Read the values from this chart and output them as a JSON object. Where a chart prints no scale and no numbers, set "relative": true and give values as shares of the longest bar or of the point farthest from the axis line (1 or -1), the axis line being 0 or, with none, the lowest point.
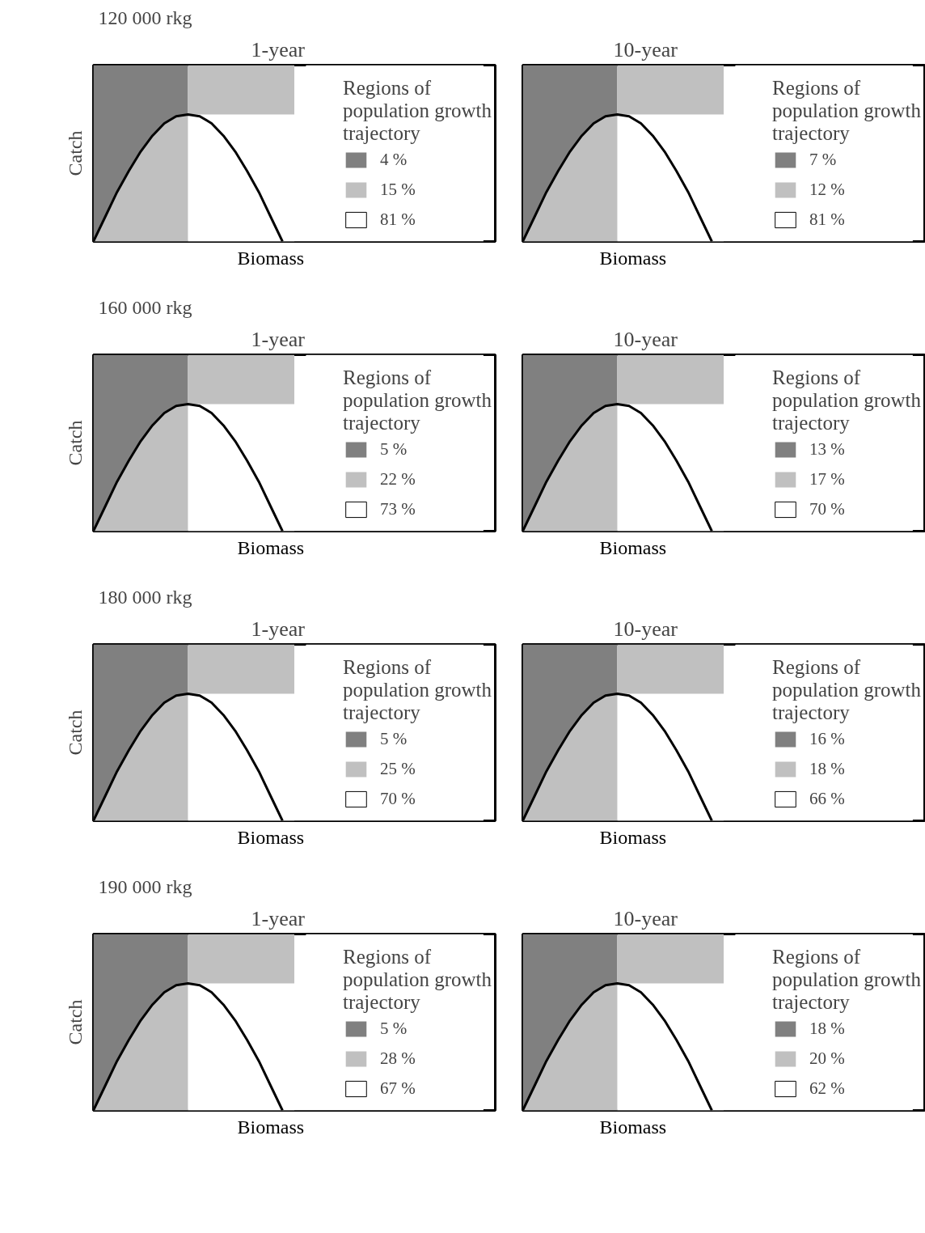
{
  "chart_data": [
    {
      "type": "line",
      "relative": true,
      "annotations": [
        "120 000 rkg"
      ],
      "title": "1-year",
      "xlabel": "Biomass",
      "ylabel": "Catch",
      "legend": "right",
      "legend_title": "Regions of population growth trajectory",
      "categories": [
        null,
        null,
        null,
        null,
        null,
        null,
        null,
        null,
        null,
        null,
        null,
        null,
        null,
        null,
        null,
        null,
        null,
        null,
        null,
        null,
        null,
        null,
        null,
        null,
        null,
        null,
        null,
        null,
        null,
        null,
        null,
        null,
        null,
        null
      ],
      "series": [
        {
          "name": "4 %",
          "type": "area",
          "color": "#808080",
          "values": [
            1,
            1,
            1,
            1,
            1,
            1,
            1,
            1,
            1,
            null,
            null,
            null,
            null,
            null,
            null,
            null,
            null,
            null,
            null,
            null,
            null,
            null,
            null,
            null,
            null,
            null,
            null,
            null,
            null,
            null,
            null,
            null,
            null,
            null
          ]
        },
        {
          "name": "15 %",
          "type": "area",
          "color": "#c0c0c0",
          "values": [
            0,
            0.14,
            0.28,
            0.4,
            0.51,
            0.6,
            0.67,
            0.71,
            0.72,
            null,
            null,
            null,
            null,
            null,
            null,
            null,
            null,
            null,
            null,
            null,
            null,
            null,
            null,
            null,
            null,
            null,
            null,
            null,
            null,
            null,
            null,
            null,
            null,
            null
          ]
        },
        {
          "type": "area",
          "color": "#c0c0c0",
          "values": [
            null,
            null,
            null,
            null,
            null,
            null,
            null,
            null,
            1,
            1,
            1,
            1,
            1,
            1,
            1,
            1,
            1,
            1,
            null,
            null,
            null,
            null,
            null,
            null,
            null,
            null,
            null,
            null,
            null,
            null,
            null,
            null,
            null,
            null
          ]
        },
        {
          "name": "81 %",
          "type": "area",
          "color": "#ffffff",
          "values": [
            null,
            null,
            null,
            null,
            null,
            null,
            null,
            null,
            0.72,
            0.72,
            0.72,
            0.72,
            0.72,
            0.72,
            0.72,
            0.72,
            0.72,
            0.72,
            1,
            1,
            1,
            1,
            1,
            1,
            1,
            1,
            1,
            1,
            1,
            1,
            1,
            1,
            1,
            1
          ]
        },
        {
          "type": "line",
          "color": "#000000",
          "values": [
            0,
            0.14,
            0.28,
            0.4,
            0.51,
            0.6,
            0.67,
            0.71,
            0.72,
            0.71,
            0.67,
            0.6,
            0.51,
            0.4,
            0.28,
            0.14,
            0,
            null,
            null,
            null,
            null,
            null,
            null,
            null,
            null,
            null,
            null,
            null,
            null,
            null,
            null,
            null,
            null,
            null
          ]
        }
      ]
    },
    {
      "type": "line",
      "relative": true,
      "title": "10-year",
      "xlabel": "Biomass",
      "legend": "right",
      "legend_title": "Regions of population growth trajectory",
      "categories": [
        null,
        null,
        null,
        null,
        null,
        null,
        null,
        null,
        null,
        null,
        null,
        null,
        null,
        null,
        null,
        null,
        null,
        null,
        null,
        null,
        null,
        null,
        null,
        null,
        null,
        null,
        null,
        null,
        null,
        null,
        null,
        null,
        null,
        null
      ],
      "series": [
        {
          "name": "7 %",
          "type": "area",
          "color": "#808080",
          "values": [
            1,
            1,
            1,
            1,
            1,
            1,
            1,
            1,
            1,
            null,
            null,
            null,
            null,
            null,
            null,
            null,
            null,
            null,
            null,
            null,
            null,
            null,
            null,
            null,
            null,
            null,
            null,
            null,
            null,
            null,
            null,
            null,
            null,
            null
          ]
        },
        {
          "name": "12 %",
          "type": "area",
          "color": "#c0c0c0",
          "values": [
            0,
            0.14,
            0.28,
            0.4,
            0.51,
            0.6,
            0.67,
            0.71,
            0.72,
            null,
            null,
            null,
            null,
            null,
            null,
            null,
            null,
            null,
            null,
            null,
            null,
            null,
            null,
            null,
            null,
            null,
            null,
            null,
            null,
            null,
            null,
            null,
            null,
            null
          ]
        },
        {
          "type": "area",
          "color": "#c0c0c0",
          "values": [
            null,
            null,
            null,
            null,
            null,
            null,
            null,
            null,
            1,
            1,
            1,
            1,
            1,
            1,
            1,
            1,
            1,
            1,
            null,
            null,
            null,
            null,
            null,
            null,
            null,
            null,
            null,
            null,
            null,
            null,
            null,
            null,
            null,
            null
          ]
        },
        {
          "name": "81 %",
          "type": "area",
          "color": "#ffffff",
          "values": [
            null,
            null,
            null,
            null,
            null,
            null,
            null,
            null,
            0.72,
            0.72,
            0.72,
            0.72,
            0.72,
            0.72,
            0.72,
            0.72,
            0.72,
            0.72,
            1,
            1,
            1,
            1,
            1,
            1,
            1,
            1,
            1,
            1,
            1,
            1,
            1,
            1,
            1,
            1
          ]
        },
        {
          "type": "line",
          "color": "#000000",
          "values": [
            0,
            0.14,
            0.28,
            0.4,
            0.51,
            0.6,
            0.67,
            0.71,
            0.72,
            0.71,
            0.67,
            0.6,
            0.51,
            0.4,
            0.28,
            0.14,
            0,
            null,
            null,
            null,
            null,
            null,
            null,
            null,
            null,
            null,
            null,
            null,
            null,
            null,
            null,
            null,
            null,
            null
          ]
        }
      ]
    },
    {
      "type": "line",
      "relative": true,
      "annotations": [
        "160 000 rkg"
      ],
      "title": "1-year",
      "xlabel": "Biomass",
      "ylabel": "Catch",
      "legend": "right",
      "legend_title": "Regions of population growth trajectory",
      "categories": [
        null,
        null,
        null,
        null,
        null,
        null,
        null,
        null,
        null,
        null,
        null,
        null,
        null,
        null,
        null,
        null,
        null,
        null,
        null,
        null,
        null,
        null,
        null,
        null,
        null,
        null,
        null,
        null,
        null,
        null,
        null,
        null,
        null,
        null
      ],
      "series": [
        {
          "name": "5 %",
          "type": "area",
          "color": "#808080",
          "values": [
            1,
            1,
            1,
            1,
            1,
            1,
            1,
            1,
            1,
            null,
            null,
            null,
            null,
            null,
            null,
            null,
            null,
            null,
            null,
            null,
            null,
            null,
            null,
            null,
            null,
            null,
            null,
            null,
            null,
            null,
            null,
            null,
            null,
            null
          ]
        },
        {
          "name": "22 %",
          "type": "area",
          "color": "#c0c0c0",
          "values": [
            0,
            0.14,
            0.28,
            0.4,
            0.51,
            0.6,
            0.67,
            0.71,
            0.72,
            null,
            null,
            null,
            null,
            null,
            null,
            null,
            null,
            null,
            null,
            null,
            null,
            null,
            null,
            null,
            null,
            null,
            null,
            null,
            null,
            null,
            null,
            null,
            null,
            null
          ]
        },
        {
          "type": "area",
          "color": "#c0c0c0",
          "values": [
            null,
            null,
            null,
            null,
            null,
            null,
            null,
            null,
            1,
            1,
            1,
            1,
            1,
            1,
            1,
            1,
            1,
            1,
            null,
            null,
            null,
            null,
            null,
            null,
            null,
            null,
            null,
            null,
            null,
            null,
            null,
            null,
            null,
            null
          ]
        },
        {
          "name": "73 %",
          "type": "area",
          "color": "#ffffff",
          "values": [
            null,
            null,
            null,
            null,
            null,
            null,
            null,
            null,
            0.72,
            0.72,
            0.72,
            0.72,
            0.72,
            0.72,
            0.72,
            0.72,
            0.72,
            0.72,
            1,
            1,
            1,
            1,
            1,
            1,
            1,
            1,
            1,
            1,
            1,
            1,
            1,
            1,
            1,
            1
          ]
        },
        {
          "type": "line",
          "color": "#000000",
          "values": [
            0,
            0.14,
            0.28,
            0.4,
            0.51,
            0.6,
            0.67,
            0.71,
            0.72,
            0.71,
            0.67,
            0.6,
            0.51,
            0.4,
            0.28,
            0.14,
            0,
            null,
            null,
            null,
            null,
            null,
            null,
            null,
            null,
            null,
            null,
            null,
            null,
            null,
            null,
            null,
            null,
            null
          ]
        }
      ]
    },
    {
      "type": "line",
      "relative": true,
      "title": "10-year",
      "xlabel": "Biomass",
      "legend": "right",
      "legend_title": "Regions of population growth trajectory",
      "categories": [
        null,
        null,
        null,
        null,
        null,
        null,
        null,
        null,
        null,
        null,
        null,
        null,
        null,
        null,
        null,
        null,
        null,
        null,
        null,
        null,
        null,
        null,
        null,
        null,
        null,
        null,
        null,
        null,
        null,
        null,
        null,
        null,
        null,
        null
      ],
      "series": [
        {
          "name": "13 %",
          "type": "area",
          "color": "#808080",
          "values": [
            1,
            1,
            1,
            1,
            1,
            1,
            1,
            1,
            1,
            null,
            null,
            null,
            null,
            null,
            null,
            null,
            null,
            null,
            null,
            null,
            null,
            null,
            null,
            null,
            null,
            null,
            null,
            null,
            null,
            null,
            null,
            null,
            null,
            null
          ]
        },
        {
          "name": "17 %",
          "type": "area",
          "color": "#c0c0c0",
          "values": [
            0,
            0.14,
            0.28,
            0.4,
            0.51,
            0.6,
            0.67,
            0.71,
            0.72,
            null,
            null,
            null,
            null,
            null,
            null,
            null,
            null,
            null,
            null,
            null,
            null,
            null,
            null,
            null,
            null,
            null,
            null,
            null,
            null,
            null,
            null,
            null,
            null,
            null
          ]
        },
        {
          "type": "area",
          "color": "#c0c0c0",
          "values": [
            null,
            null,
            null,
            null,
            null,
            null,
            null,
            null,
            1,
            1,
            1,
            1,
            1,
            1,
            1,
            1,
            1,
            1,
            null,
            null,
            null,
            null,
            null,
            null,
            null,
            null,
            null,
            null,
            null,
            null,
            null,
            null,
            null,
            null
          ]
        },
        {
          "name": "70 %",
          "type": "area",
          "color": "#ffffff",
          "values": [
            null,
            null,
            null,
            null,
            null,
            null,
            null,
            null,
            0.72,
            0.72,
            0.72,
            0.72,
            0.72,
            0.72,
            0.72,
            0.72,
            0.72,
            0.72,
            1,
            1,
            1,
            1,
            1,
            1,
            1,
            1,
            1,
            1,
            1,
            1,
            1,
            1,
            1,
            1
          ]
        },
        {
          "type": "line",
          "color": "#000000",
          "values": [
            0,
            0.14,
            0.28,
            0.4,
            0.51,
            0.6,
            0.67,
            0.71,
            0.72,
            0.71,
            0.67,
            0.6,
            0.51,
            0.4,
            0.28,
            0.14,
            0,
            null,
            null,
            null,
            null,
            null,
            null,
            null,
            null,
            null,
            null,
            null,
            null,
            null,
            null,
            null,
            null,
            null
          ]
        }
      ]
    },
    {
      "type": "line",
      "relative": true,
      "annotations": [
        "180 000 rkg"
      ],
      "title": "1-year",
      "xlabel": "Biomass",
      "ylabel": "Catch",
      "legend": "right",
      "legend_title": "Regions of population growth trajectory",
      "categories": [
        null,
        null,
        null,
        null,
        null,
        null,
        null,
        null,
        null,
        null,
        null,
        null,
        null,
        null,
        null,
        null,
        null,
        null,
        null,
        null,
        null,
        null,
        null,
        null,
        null,
        null,
        null,
        null,
        null,
        null,
        null,
        null,
        null,
        null
      ],
      "series": [
        {
          "name": "5 %",
          "type": "area",
          "color": "#808080",
          "values": [
            1,
            1,
            1,
            1,
            1,
            1,
            1,
            1,
            1,
            null,
            null,
            null,
            null,
            null,
            null,
            null,
            null,
            null,
            null,
            null,
            null,
            null,
            null,
            null,
            null,
            null,
            null,
            null,
            null,
            null,
            null,
            null,
            null,
            null
          ]
        },
        {
          "name": "25 %",
          "type": "area",
          "color": "#c0c0c0",
          "values": [
            0,
            0.14,
            0.28,
            0.4,
            0.51,
            0.6,
            0.67,
            0.71,
            0.72,
            null,
            null,
            null,
            null,
            null,
            null,
            null,
            null,
            null,
            null,
            null,
            null,
            null,
            null,
            null,
            null,
            null,
            null,
            null,
            null,
            null,
            null,
            null,
            null,
            null
          ]
        },
        {
          "type": "area",
          "color": "#c0c0c0",
          "values": [
            null,
            null,
            null,
            null,
            null,
            null,
            null,
            null,
            1,
            1,
            1,
            1,
            1,
            1,
            1,
            1,
            1,
            1,
            null,
            null,
            null,
            null,
            null,
            null,
            null,
            null,
            null,
            null,
            null,
            null,
            null,
            null,
            null,
            null
          ]
        },
        {
          "name": "70 %",
          "type": "area",
          "color": "#ffffff",
          "values": [
            null,
            null,
            null,
            null,
            null,
            null,
            null,
            null,
            0.72,
            0.72,
            0.72,
            0.72,
            0.72,
            0.72,
            0.72,
            0.72,
            0.72,
            0.72,
            1,
            1,
            1,
            1,
            1,
            1,
            1,
            1,
            1,
            1,
            1,
            1,
            1,
            1,
            1,
            1
          ]
        },
        {
          "type": "line",
          "color": "#000000",
          "values": [
            0,
            0.14,
            0.28,
            0.4,
            0.51,
            0.6,
            0.67,
            0.71,
            0.72,
            0.71,
            0.67,
            0.6,
            0.51,
            0.4,
            0.28,
            0.14,
            0,
            null,
            null,
            null,
            null,
            null,
            null,
            null,
            null,
            null,
            null,
            null,
            null,
            null,
            null,
            null,
            null,
            null
          ]
        }
      ]
    },
    {
      "type": "line",
      "relative": true,
      "title": "10-year",
      "xlabel": "Biomass",
      "legend": "right",
      "legend_title": "Regions of population growth trajectory",
      "categories": [
        null,
        null,
        null,
        null,
        null,
        null,
        null,
        null,
        null,
        null,
        null,
        null,
        null,
        null,
        null,
        null,
        null,
        null,
        null,
        null,
        null,
        null,
        null,
        null,
        null,
        null,
        null,
        null,
        null,
        null,
        null,
        null,
        null,
        null
      ],
      "series": [
        {
          "name": "16 %",
          "type": "area",
          "color": "#808080",
          "values": [
            1,
            1,
            1,
            1,
            1,
            1,
            1,
            1,
            1,
            null,
            null,
            null,
            null,
            null,
            null,
            null,
            null,
            null,
            null,
            null,
            null,
            null,
            null,
            null,
            null,
            null,
            null,
            null,
            null,
            null,
            null,
            null,
            null,
            null
          ]
        },
        {
          "name": "18 %",
          "type": "area",
          "color": "#c0c0c0",
          "values": [
            0,
            0.14,
            0.28,
            0.4,
            0.51,
            0.6,
            0.67,
            0.71,
            0.72,
            null,
            null,
            null,
            null,
            null,
            null,
            null,
            null,
            null,
            null,
            null,
            null,
            null,
            null,
            null,
            null,
            null,
            null,
            null,
            null,
            null,
            null,
            null,
            null,
            null
          ]
        },
        {
          "type": "area",
          "color": "#c0c0c0",
          "values": [
            null,
            null,
            null,
            null,
            null,
            null,
            null,
            null,
            1,
            1,
            1,
            1,
            1,
            1,
            1,
            1,
            1,
            1,
            null,
            null,
            null,
            null,
            null,
            null,
            null,
            null,
            null,
            null,
            null,
            null,
            null,
            null,
            null,
            null
          ]
        },
        {
          "name": "66 %",
          "type": "area",
          "color": "#ffffff",
          "values": [
            null,
            null,
            null,
            null,
            null,
            null,
            null,
            null,
            0.72,
            0.72,
            0.72,
            0.72,
            0.72,
            0.72,
            0.72,
            0.72,
            0.72,
            0.72,
            1,
            1,
            1,
            1,
            1,
            1,
            1,
            1,
            1,
            1,
            1,
            1,
            1,
            1,
            1,
            1
          ]
        },
        {
          "type": "line",
          "color": "#000000",
          "values": [
            0,
            0.14,
            0.28,
            0.4,
            0.51,
            0.6,
            0.67,
            0.71,
            0.72,
            0.71,
            0.67,
            0.6,
            0.51,
            0.4,
            0.28,
            0.14,
            0,
            null,
            null,
            null,
            null,
            null,
            null,
            null,
            null,
            null,
            null,
            null,
            null,
            null,
            null,
            null,
            null,
            null
          ]
        }
      ]
    },
    {
      "type": "line",
      "relative": true,
      "annotations": [
        "190 000 rkg"
      ],
      "title": "1-year",
      "xlabel": "Biomass",
      "ylabel": "Catch",
      "legend": "right",
      "legend_title": "Regions of population growth trajectory",
      "categories": [
        null,
        null,
        null,
        null,
        null,
        null,
        null,
        null,
        null,
        null,
        null,
        null,
        null,
        null,
        null,
        null,
        null,
        null,
        null,
        null,
        null,
        null,
        null,
        null,
        null,
        null,
        null,
        null,
        null,
        null,
        null,
        null,
        null,
        null
      ],
      "series": [
        {
          "name": "5 %",
          "type": "area",
          "color": "#808080",
          "values": [
            1,
            1,
            1,
            1,
            1,
            1,
            1,
            1,
            1,
            null,
            null,
            null,
            null,
            null,
            null,
            null,
            null,
            null,
            null,
            null,
            null,
            null,
            null,
            null,
            null,
            null,
            null,
            null,
            null,
            null,
            null,
            null,
            null,
            null
          ]
        },
        {
          "name": "28 %",
          "type": "area",
          "color": "#c0c0c0",
          "values": [
            0,
            0.14,
            0.28,
            0.4,
            0.51,
            0.6,
            0.67,
            0.71,
            0.72,
            null,
            null,
            null,
            null,
            null,
            null,
            null,
            null,
            null,
            null,
            null,
            null,
            null,
            null,
            null,
            null,
            null,
            null,
            null,
            null,
            null,
            null,
            null,
            null,
            null
          ]
        },
        {
          "type": "area",
          "color": "#c0c0c0",
          "values": [
            null,
            null,
            null,
            null,
            null,
            null,
            null,
            null,
            1,
            1,
            1,
            1,
            1,
            1,
            1,
            1,
            1,
            1,
            null,
            null,
            null,
            null,
            null,
            null,
            null,
            null,
            null,
            null,
            null,
            null,
            null,
            null,
            null,
            null
          ]
        },
        {
          "name": "67 %",
          "type": "area",
          "color": "#ffffff",
          "values": [
            null,
            null,
            null,
            null,
            null,
            null,
            null,
            null,
            0.72,
            0.72,
            0.72,
            0.72,
            0.72,
            0.72,
            0.72,
            0.72,
            0.72,
            0.72,
            1,
            1,
            1,
            1,
            1,
            1,
            1,
            1,
            1,
            1,
            1,
            1,
            1,
            1,
            1,
            1
          ]
        },
        {
          "type": "line",
          "color": "#000000",
          "values": [
            0,
            0.14,
            0.28,
            0.4,
            0.51,
            0.6,
            0.67,
            0.71,
            0.72,
            0.71,
            0.67,
            0.6,
            0.51,
            0.4,
            0.28,
            0.14,
            0,
            null,
            null,
            null,
            null,
            null,
            null,
            null,
            null,
            null,
            null,
            null,
            null,
            null,
            null,
            null,
            null,
            null
          ]
        }
      ]
    },
    {
      "type": "line",
      "relative": true,
      "title": "10-year",
      "xlabel": "Biomass",
      "legend": "right",
      "legend_title": "Regions of population growth trajectory",
      "categories": [
        null,
        null,
        null,
        null,
        null,
        null,
        null,
        null,
        null,
        null,
        null,
        null,
        null,
        null,
        null,
        null,
        null,
        null,
        null,
        null,
        null,
        null,
        null,
        null,
        null,
        null,
        null,
        null,
        null,
        null,
        null,
        null,
        null,
        null
      ],
      "series": [
        {
          "name": "18 %",
          "type": "area",
          "color": "#808080",
          "values": [
            1,
            1,
            1,
            1,
            1,
            1,
            1,
            1,
            1,
            null,
            null,
            null,
            null,
            null,
            null,
            null,
            null,
            null,
            null,
            null,
            null,
            null,
            null,
            null,
            null,
            null,
            null,
            null,
            null,
            null,
            null,
            null,
            null,
            null
          ]
        },
        {
          "name": "20 %",
          "type": "area",
          "color": "#c0c0c0",
          "values": [
            0,
            0.14,
            0.28,
            0.4,
            0.51,
            0.6,
            0.67,
            0.71,
            0.72,
            null,
            null,
            null,
            null,
            null,
            null,
            null,
            null,
            null,
            null,
            null,
            null,
            null,
            null,
            null,
            null,
            null,
            null,
            null,
            null,
            null,
            null,
            null,
            null,
            null
          ]
        },
        {
          "type": "area",
          "color": "#c0c0c0",
          "values": [
            null,
            null,
            null,
            null,
            null,
            null,
            null,
            null,
            1,
            1,
            1,
            1,
            1,
            1,
            1,
            1,
            1,
            1,
            null,
            null,
            null,
            null,
            null,
            null,
            null,
            null,
            null,
            null,
            null,
            null,
            null,
            null,
            null,
            null
          ]
        },
        {
          "name": "62 %",
          "type": "area",
          "color": "#ffffff",
          "values": [
            null,
            null,
            null,
            null,
            null,
            null,
            null,
            null,
            0.72,
            0.72,
            0.72,
            0.72,
            0.72,
            0.72,
            0.72,
            0.72,
            0.72,
            0.72,
            1,
            1,
            1,
            1,
            1,
            1,
            1,
            1,
            1,
            1,
            1,
            1,
            1,
            1,
            1,
            1
          ]
        },
        {
          "type": "line",
          "color": "#000000",
          "values": [
            0,
            0.14,
            0.28,
            0.4,
            0.51,
            0.6,
            0.67,
            0.71,
            0.72,
            0.71,
            0.67,
            0.6,
            0.51,
            0.4,
            0.28,
            0.14,
            0,
            null,
            null,
            null,
            null,
            null,
            null,
            null,
            null,
            null,
            null,
            null,
            null,
            null,
            null,
            null,
            null,
            null
          ]
        }
      ]
    }
  ]
}
